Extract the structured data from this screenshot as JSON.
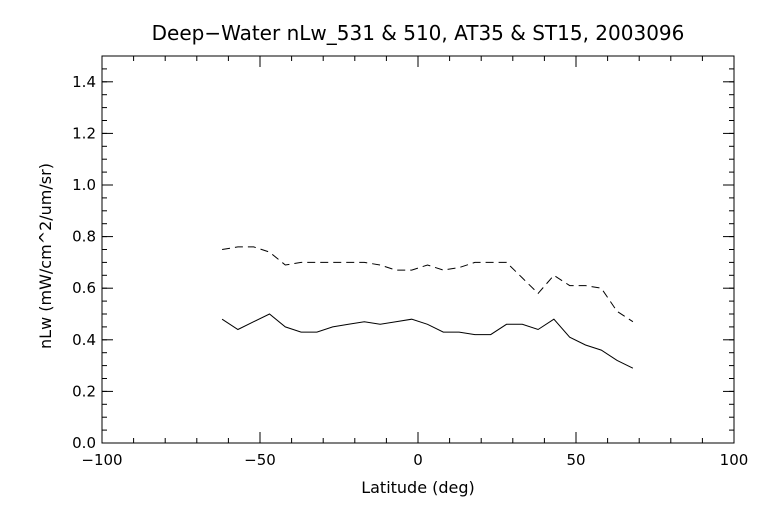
{
  "chart_data": {
    "type": "line",
    "title": "Deep−Water nLw_531 & 510, AT35 & ST15, 2003096",
    "xlabel": "Latitude (deg)",
    "ylabel": "nLw (mW/cm^2/um/sr)",
    "xlim": [
      -100,
      100
    ],
    "ylim": [
      0.0,
      1.5
    ],
    "xticks": [
      -100,
      -50,
      0,
      50,
      100
    ],
    "xtick_labels": [
      "−100",
      "−50",
      "0",
      "50",
      "100"
    ],
    "yticks": [
      0.0,
      0.2,
      0.4,
      0.6,
      0.8,
      1.0,
      1.2,
      1.4
    ],
    "ytick_labels": [
      "0.0",
      "0.2",
      "0.4",
      "0.6",
      "0.8",
      "1.0",
      "1.2",
      "1.4"
    ],
    "x_minor_step": 10,
    "y_minor_step": 0.05,
    "grid": false,
    "legend": "none",
    "series": [
      {
        "line_style": "solid",
        "x": [
          -62,
          -57,
          -52,
          -47,
          -42,
          -37,
          -32,
          -27,
          -22,
          -17,
          -12,
          -7,
          -2,
          3,
          8,
          13,
          18,
          23,
          28,
          33,
          38,
          43,
          48,
          53,
          58,
          63,
          68
        ],
        "y": [
          0.48,
          0.44,
          0.47,
          0.5,
          0.45,
          0.43,
          0.43,
          0.45,
          0.46,
          0.47,
          0.46,
          0.47,
          0.48,
          0.46,
          0.43,
          0.43,
          0.42,
          0.42,
          0.46,
          0.46,
          0.44,
          0.48,
          0.41,
          0.38,
          0.36,
          0.32,
          0.29
        ]
      },
      {
        "line_style": "dashed",
        "x": [
          -62,
          -57,
          -52,
          -47,
          -42,
          -37,
          -32,
          -27,
          -22,
          -17,
          -12,
          -7,
          -2,
          3,
          8,
          13,
          18,
          23,
          28,
          33,
          38,
          43,
          48,
          53,
          58,
          63,
          68
        ],
        "y": [
          0.75,
          0.76,
          0.76,
          0.74,
          0.69,
          0.7,
          0.7,
          0.7,
          0.7,
          0.7,
          0.69,
          0.67,
          0.67,
          0.69,
          0.67,
          0.68,
          0.7,
          0.7,
          0.7,
          0.64,
          0.58,
          0.65,
          0.61,
          0.61,
          0.6,
          0.51,
          0.47
        ]
      }
    ]
  }
}
